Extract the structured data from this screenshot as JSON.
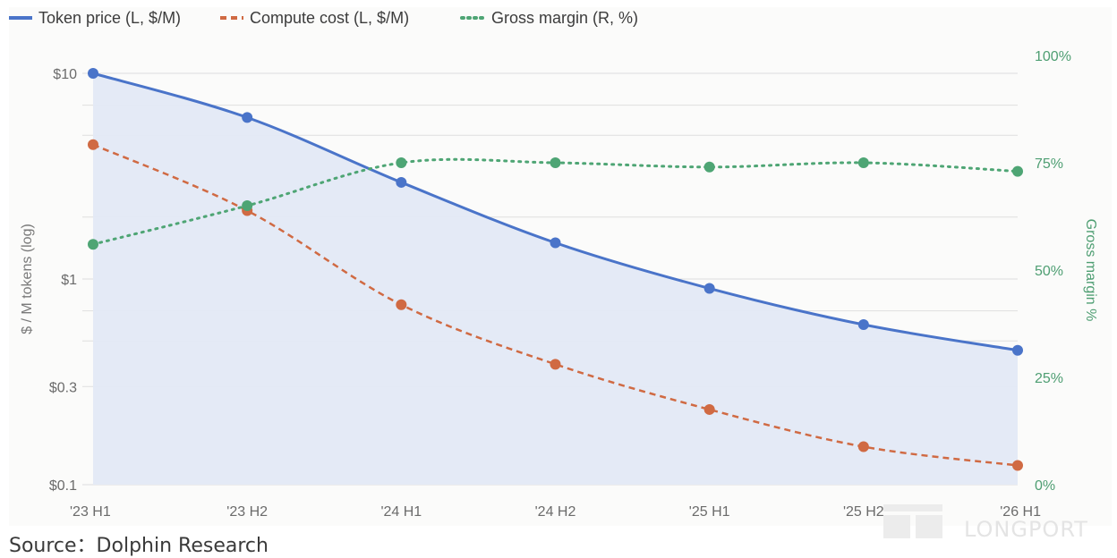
{
  "chart_data": {
    "type": "line",
    "categories": [
      "'23 H1",
      "'23 H2",
      "'24 H1",
      "'24 H2",
      "'25 H1",
      "'25 H2",
      "'26 H1"
    ],
    "series": [
      {
        "name": "Token price (L, $/M)",
        "axis": "left",
        "style": "solid",
        "color": "#4a74c9",
        "values": [
          10,
          6.1,
          2.95,
          1.5,
          0.9,
          0.6,
          0.45
        ]
      },
      {
        "name": "Compute cost (L, $/M)",
        "axis": "left",
        "style": "dashed",
        "color": "#d06a43",
        "values": [
          4.5,
          2.15,
          0.75,
          0.385,
          0.232,
          0.153,
          0.124
        ]
      },
      {
        "name": "Gross margin (R, %)",
        "axis": "right",
        "style": "dotted",
        "color": "#4ea574",
        "values": [
          56,
          65,
          75,
          75,
          74,
          75,
          73
        ]
      }
    ],
    "y_left": {
      "label": "$ / M tokens (log)",
      "scale": "log",
      "range": [
        0.1,
        10
      ],
      "ticks": [
        {
          "value": 10,
          "label": "$10"
        },
        {
          "value": 1,
          "label": "$1"
        },
        {
          "value": 0.3,
          "label": "$0.3"
        },
        {
          "value": 0.1,
          "label": "$0.1"
        }
      ]
    },
    "y_right": {
      "label": "Gross margin %",
      "range": [
        0,
        100
      ],
      "ticks": [
        {
          "value": 100,
          "label": "100%"
        },
        {
          "value": 75,
          "label": "75%"
        },
        {
          "value": 50,
          "label": "50%"
        },
        {
          "value": 25,
          "label": "25%"
        },
        {
          "value": 0,
          "label": "0%"
        }
      ]
    },
    "gridlines": [
      10,
      7,
      5,
      2,
      1,
      0.7,
      0.5,
      0.3,
      0.1
    ],
    "shaded_area_color": "#e3e9f6",
    "legend_position": "top-left",
    "grid": true
  },
  "source_text": "Source：Dolphin Research",
  "watermark_text": "LONGPORT"
}
